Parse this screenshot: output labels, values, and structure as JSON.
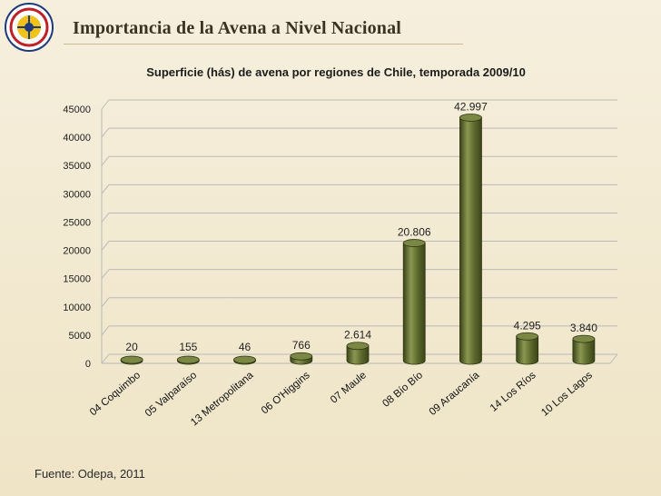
{
  "page": {
    "title": "Importancia de la Avena a Nivel Nacional",
    "source": "Fuente: Odepa, 2011"
  },
  "colors": {
    "bar_fill": "#5e6b2e",
    "bar_dark": "#3b4418",
    "bar_light": "#8a9752",
    "grid": "#b9b9b9",
    "background": "#f4ecd8"
  },
  "chart_data": {
    "type": "bar",
    "title": "Superficie (hás) de avena por regiones de Chile, temporada 2009/10",
    "xlabel": "",
    "ylabel": "",
    "categories": [
      "04 Coquimbo",
      "05 Valparaíso",
      "13 Metropolitana",
      "06 O'Higgins",
      "07 Maule",
      "08 Bío Bío",
      "09 Araucanía",
      "14 Los Ríos",
      "10 Los Lagos"
    ],
    "values": [
      20,
      155,
      46,
      766,
      2614,
      20806,
      42997,
      4295,
      3840
    ],
    "value_labels": [
      "20",
      "155",
      "46",
      "766",
      "2.614",
      "20.806",
      "42.997",
      "4.295",
      "3.840"
    ],
    "ylim": [
      0,
      45000
    ],
    "yticks": [
      0,
      5000,
      10000,
      15000,
      20000,
      25000,
      30000,
      35000,
      40000,
      45000
    ],
    "grid": true,
    "legend": "none"
  }
}
